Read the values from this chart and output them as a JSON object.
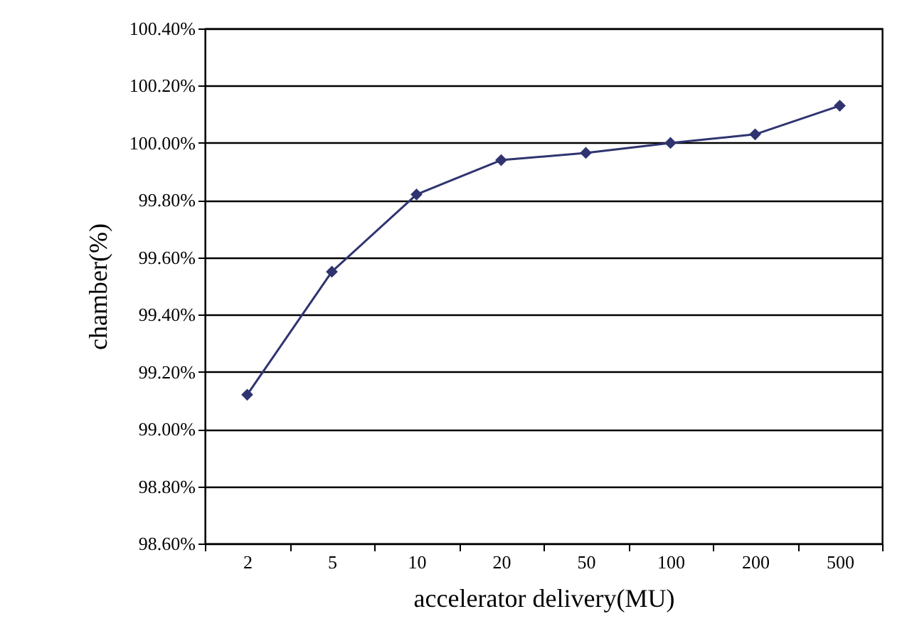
{
  "chart_data": {
    "type": "line",
    "xlabel": "accelerator delivery(MU)",
    "ylabel": "chamber(%)",
    "categories": [
      "2",
      "5",
      "10",
      "20",
      "50",
      "100",
      "200",
      "500"
    ],
    "series": [
      {
        "color": "#2f3470",
        "values": [
          99.12,
          99.55,
          99.82,
          99.94,
          99.965,
          100.0,
          100.03,
          100.13
        ]
      }
    ],
    "ylim": [
      98.6,
      100.4
    ],
    "yticks": [
      {
        "value": 98.6,
        "label": "98.60%"
      },
      {
        "value": 98.8,
        "label": "98.80%"
      },
      {
        "value": 99.0,
        "label": "99.00%"
      },
      {
        "value": 99.2,
        "label": "99.20%"
      },
      {
        "value": 99.4,
        "label": "99.40%"
      },
      {
        "value": 99.6,
        "label": "99.60%"
      },
      {
        "value": 99.8,
        "label": "99.80%"
      },
      {
        "value": 100.0,
        "label": "100.00%"
      },
      {
        "value": 100.2,
        "label": "100.20%"
      },
      {
        "value": 100.4,
        "label": "100.40%"
      }
    ],
    "grid": "y",
    "marker": "diamond",
    "line_style": "solid"
  }
}
